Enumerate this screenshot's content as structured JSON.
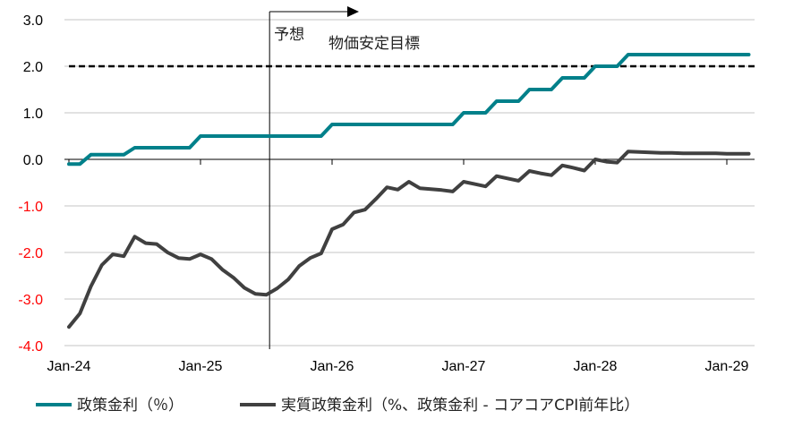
{
  "chart_data": {
    "type": "line",
    "title": "",
    "xlabel": "",
    "ylabel": "",
    "ylim": [
      -4.0,
      3.0
    ],
    "yticks": [
      "3.0",
      "2.0",
      "1.0",
      "0.0",
      "-1.0",
      "-2.0",
      "-3.0",
      "-4.0"
    ],
    "yticks_values": [
      3,
      2,
      1,
      0,
      -1,
      -2,
      -3,
      -4
    ],
    "negative_tick_color": "#ff0000",
    "xticks": [
      "Jan-24",
      "Jan-25",
      "Jan-26",
      "Jan-27",
      "Jan-28",
      "Jan-29"
    ],
    "x_start": "Jan-24",
    "x_frequency": "monthly",
    "grid": "horizontal",
    "legend_position": "bottom",
    "series": [
      {
        "name": "政策金利（％）",
        "color": "#00808a",
        "values": [
          -0.1,
          -0.1,
          0.1,
          0.1,
          0.1,
          0.1,
          0.25,
          0.25,
          0.25,
          0.25,
          0.25,
          0.25,
          0.5,
          0.5,
          0.5,
          0.5,
          0.5,
          0.5,
          0.5,
          0.5,
          0.5,
          0.5,
          0.5,
          0.5,
          0.75,
          0.75,
          0.75,
          0.75,
          0.75,
          0.75,
          0.75,
          0.75,
          0.75,
          0.75,
          0.75,
          0.75,
          1.0,
          1.0,
          1.0,
          1.25,
          1.25,
          1.25,
          1.5,
          1.5,
          1.5,
          1.75,
          1.75,
          1.75,
          2.0,
          2.0,
          2.0,
          2.25,
          2.25,
          2.25,
          2.25,
          2.25,
          2.25,
          2.25,
          2.25,
          2.25,
          2.25,
          2.25,
          2.25
        ]
      },
      {
        "name": "実質政策金利（%、政策金利 - コアコアCPI前年比）",
        "color": "#404040",
        "values": [
          -3.6,
          -3.31,
          -2.73,
          -2.27,
          -2.04,
          -2.08,
          -1.66,
          -1.8,
          -1.82,
          -2.0,
          -2.12,
          -2.14,
          -2.04,
          -2.14,
          -2.37,
          -2.54,
          -2.76,
          -2.89,
          -2.91,
          -2.77,
          -2.58,
          -2.29,
          -2.12,
          -2.02,
          -1.5,
          -1.4,
          -1.14,
          -1.08,
          -0.85,
          -0.6,
          -0.65,
          -0.48,
          -0.62,
          -0.64,
          -0.66,
          -0.69,
          -0.48,
          -0.53,
          -0.58,
          -0.36,
          -0.41,
          -0.46,
          -0.25,
          -0.3,
          -0.34,
          -0.13,
          -0.18,
          -0.24,
          0.0,
          -0.05,
          -0.07,
          0.17,
          0.16,
          0.15,
          0.14,
          0.14,
          0.13,
          0.13,
          0.13,
          0.13,
          0.12,
          0.12,
          0.12
        ]
      }
    ],
    "reference_line": {
      "value": 2.0,
      "label": "物価安定目標",
      "style": "dashed",
      "color": "#000000"
    },
    "forecast_marker": {
      "label": "予想",
      "month_index": 18.3
    }
  }
}
